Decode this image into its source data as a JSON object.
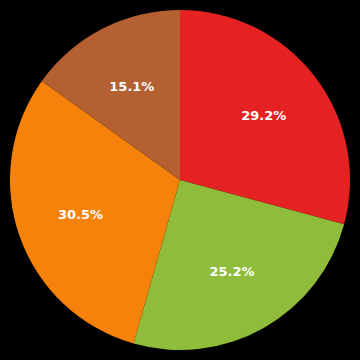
{
  "chart_data": {
    "type": "pie",
    "values": [
      29.2,
      25.2,
      30.5,
      15.1
    ],
    "value_labels": [
      "29.2%",
      "25.2%",
      "30.5%",
      "15.1%"
    ],
    "colors": [
      "#e52222",
      "#8fbc3a",
      "#f5820a",
      "#b56030"
    ],
    "data_labels": true
  }
}
